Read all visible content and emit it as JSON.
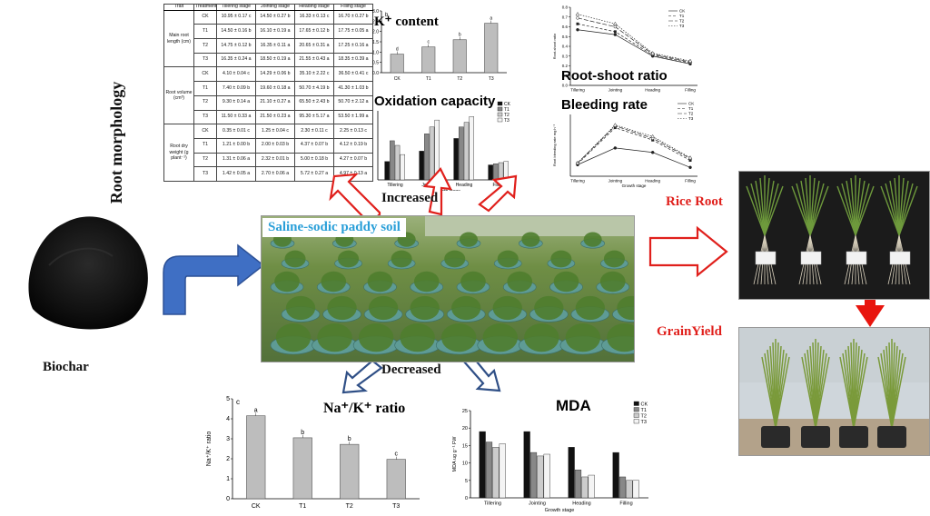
{
  "morphology": {
    "side_title": "Root morphology",
    "headers": [
      "Trait",
      "Treatment",
      "Tillering stage",
      "Jointing stage",
      "Heading stage",
      "Filling stage"
    ],
    "groups": [
      {
        "trait": "Main root length (cm)",
        "rows": [
          [
            "CK",
            "10.95 ± 0.17 c",
            "14.50 ± 0.27 b",
            "16.33 ± 0.13 c",
            "16.70 ± 0.27 b"
          ],
          [
            "T1",
            "14.50 ± 0.16 b",
            "16.10 ± 0.19 a",
            "17.65 ± 0.12 b",
            "17.75 ± 0.05 a"
          ],
          [
            "T2",
            "14.75 ± 0.12 b",
            "16.35 ± 0.11 a",
            "20.65 ± 0.31 a",
            "17.25 ± 0.16 a"
          ],
          [
            "T3",
            "16.35 ± 0.24 a",
            "18.50 ± 0.19 a",
            "21.55 ± 0.43 a",
            "18.35 ± 0.39 a"
          ]
        ]
      },
      {
        "trait": "Root volume (cm³)",
        "rows": [
          [
            "CK",
            "4.10 ± 0.04 c",
            "14.29 ± 0.06 b",
            "35.10 ± 2.22 c",
            "36.50 ± 0.41 c"
          ],
          [
            "T1",
            "7.40 ± 0.09 b",
            "19.60 ± 0.18 a",
            "50.70 ± 4.19 b",
            "41.30 ± 1.03 b"
          ],
          [
            "T2",
            "9.30 ± 0.14 a",
            "21.10 ± 0.27 a",
            "65.50 ± 2.43 b",
            "50.70 ± 2.12 a"
          ],
          [
            "T3",
            "11.50 ± 0.33 a",
            "21.50 ± 0.23 a",
            "95.30 ± 5.17 a",
            "53.50 ± 1.99 a"
          ]
        ]
      },
      {
        "trait": "Root dry weight (g plant⁻¹)",
        "rows": [
          [
            "CK",
            "0.35 ± 0.01 c",
            "1.25 ± 0.04 c",
            "2.30 ± 0.11 c",
            "2.25 ± 0.13 c"
          ],
          [
            "T1",
            "1.21 ± 0.00 b",
            "2.00 ± 0.03 b",
            "4.37 ± 0.07 b",
            "4.12 ± 0.19 b"
          ],
          [
            "T2",
            "1.31 ± 0.06 a",
            "2.32 ± 0.01 b",
            "5.00 ± 0.18 b",
            "4.27 ± 0.07 b"
          ],
          [
            "T3",
            "1.42 ± 0.05 a",
            "2.70 ± 0.06 a",
            "5.72 ± 0.27 a",
            "4.97 ± 0.13 a"
          ]
        ]
      }
    ]
  },
  "labels": {
    "increased": "Increased",
    "decreased": "Decreased",
    "biochar": "Biochar",
    "soil": "Saline-sodic paddy soil",
    "rice_root": "Rice Root",
    "grain_yield": "GrainYield"
  },
  "colors": {
    "red_arrow": "#e0201c",
    "blue_arrow": "#3f6fc4",
    "soil_label": "#2a9fd8",
    "navy_arrow": "#2f4f86"
  },
  "chart_data": [
    {
      "id": "k-content",
      "type": "bar",
      "title": "K⁺ content",
      "panel_letter": "b",
      "categories": [
        "CK",
        "T1",
        "T2",
        "T3"
      ],
      "values": [
        0.9,
        1.25,
        1.6,
        2.4
      ],
      "letters": [
        "d",
        "c",
        "b",
        "a"
      ],
      "ylim": [
        0,
        3.0
      ],
      "yticks": [
        "0.0",
        "0.5",
        "1.0",
        "1.5",
        "2.0",
        "2.5",
        "3.0"
      ]
    },
    {
      "id": "root-shoot",
      "type": "line",
      "title": "Root-shoot ratio",
      "categories": [
        "Tillering",
        "Jointing",
        "Heading",
        "Filling"
      ],
      "ylim": [
        0,
        0.8
      ],
      "yticks": [
        "0.0",
        "0.1",
        "0.2",
        "0.3",
        "0.4",
        "0.5",
        "0.6",
        "0.7",
        "0.8"
      ],
      "ylabel": "Root-shoot ratio",
      "series": [
        {
          "name": "CK",
          "values": [
            0.57,
            0.52,
            0.3,
            0.22
          ]
        },
        {
          "name": "T1",
          "values": [
            0.63,
            0.55,
            0.31,
            0.23
          ]
        },
        {
          "name": "T2",
          "values": [
            0.69,
            0.6,
            0.32,
            0.24
          ]
        },
        {
          "name": "T3",
          "values": [
            0.73,
            0.63,
            0.33,
            0.25
          ]
        }
      ]
    },
    {
      "id": "oxidation",
      "type": "bar",
      "title": "Oxidation capacity",
      "categories": [
        "Tillering",
        "Jointing",
        "Heading",
        "Filling"
      ],
      "xlabel": "Growth stage",
      "ylim": [
        0,
        300
      ],
      "series": [
        {
          "name": "CK",
          "values": [
            80,
            125,
            180,
            65
          ]
        },
        {
          "name": "T1",
          "values": [
            170,
            200,
            230,
            70
          ]
        },
        {
          "name": "T2",
          "values": [
            150,
            230,
            250,
            75
          ]
        },
        {
          "name": "T3",
          "values": [
            110,
            260,
            275,
            80
          ]
        }
      ]
    },
    {
      "id": "bleeding",
      "type": "line",
      "title": "Bleeding rate",
      "categories": [
        "Tillering",
        "Jointing",
        "Heading",
        "Filling"
      ],
      "xlabel": "Growth stage",
      "ylabel": "Root bleeding rate mg h⁻¹",
      "ylim": [
        0,
        70
      ],
      "series": [
        {
          "name": "CK",
          "values": [
            13,
            32,
            27,
            10
          ]
        },
        {
          "name": "T1",
          "values": [
            14,
            55,
            41,
            18
          ]
        },
        {
          "name": "T2",
          "values": [
            15,
            57,
            43,
            20
          ]
        },
        {
          "name": "T3",
          "values": [
            15,
            58,
            45,
            21
          ]
        }
      ]
    },
    {
      "id": "na-k",
      "type": "bar",
      "title": "Na⁺/K⁺ ratio",
      "panel_letter": "c",
      "categories": [
        "CK",
        "T1",
        "T2",
        "T3"
      ],
      "values": [
        4.15,
        3.05,
        2.72,
        1.97
      ],
      "letters": [
        "a",
        "b",
        "b",
        "c"
      ],
      "ylabel": "Na⁺/K⁺ ratio",
      "ylim": [
        0,
        5
      ],
      "yticks": [
        "0",
        "1",
        "2",
        "3",
        "4",
        "5"
      ]
    },
    {
      "id": "mda",
      "type": "bar",
      "title": "MDA",
      "categories": [
        "Tillering",
        "Jointing",
        "Heading",
        "Filling"
      ],
      "xlabel": "Growth stage",
      "ylabel": "MDA ug g⁻¹ FW",
      "ylim": [
        0,
        25
      ],
      "yticks": [
        "0",
        "5",
        "10",
        "15",
        "20",
        "25"
      ],
      "series": [
        {
          "name": "CK",
          "values": [
            19,
            19,
            14.5,
            13
          ]
        },
        {
          "name": "T1",
          "values": [
            16,
            13,
            8,
            6
          ]
        },
        {
          "name": "T2",
          "values": [
            14.5,
            12,
            6,
            5
          ]
        },
        {
          "name": "T3",
          "values": [
            15.5,
            12.5,
            6.5,
            5
          ]
        }
      ]
    }
  ]
}
